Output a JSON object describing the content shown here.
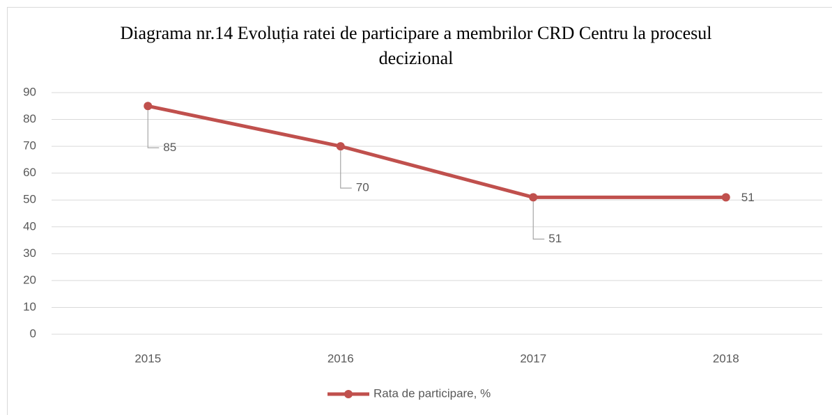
{
  "chart_data": {
    "type": "line",
    "title": "Diagrama nr.14 Evoluția ratei de participare a membrilor CRD Centru la procesul decizional",
    "categories": [
      "2015",
      "2016",
      "2017",
      "2018"
    ],
    "series": [
      {
        "name": "Rata de participare, %",
        "color": "#c0504d",
        "values": [
          85,
          70,
          51,
          51
        ]
      }
    ],
    "ylim": [
      0,
      90
    ],
    "yticks": [
      0,
      10,
      20,
      30,
      40,
      50,
      60,
      70,
      80,
      90
    ],
    "grid": true,
    "legend": "bottom",
    "data_labels": true
  }
}
